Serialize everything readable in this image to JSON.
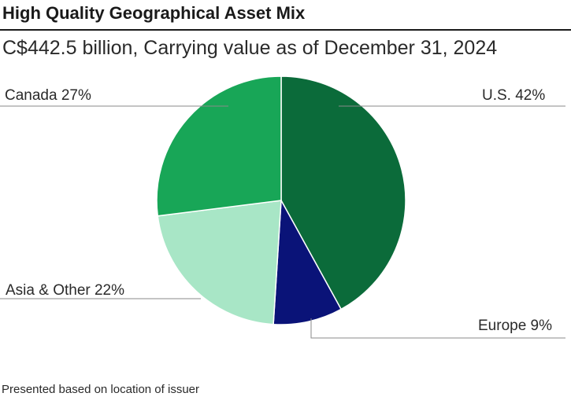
{
  "chart_data": {
    "type": "pie",
    "title": "High Quality Geographical Asset Mix",
    "subtitle": "C$442.5 billion, Carrying value as of December 31, 2024",
    "footnote": "Presented based on location of issuer",
    "slices": [
      {
        "name": "U.S.",
        "value": 42,
        "label": "U.S.  42%",
        "color": "#0b6b3a"
      },
      {
        "name": "Europe",
        "value": 9,
        "label": "Europe 9%",
        "color": "#0a1378"
      },
      {
        "name": "Asia & Other",
        "value": 22,
        "label": "Asia & Other 22%",
        "color": "#a8e6c6"
      },
      {
        "name": "Canada",
        "value": 27,
        "label": "Canada 27%",
        "color": "#18a657"
      }
    ],
    "start_angle": "12 o'clock",
    "direction": "clockwise"
  },
  "colors": {
    "leader_line": "#8a8a8a",
    "slice_border": "#ffffff"
  }
}
